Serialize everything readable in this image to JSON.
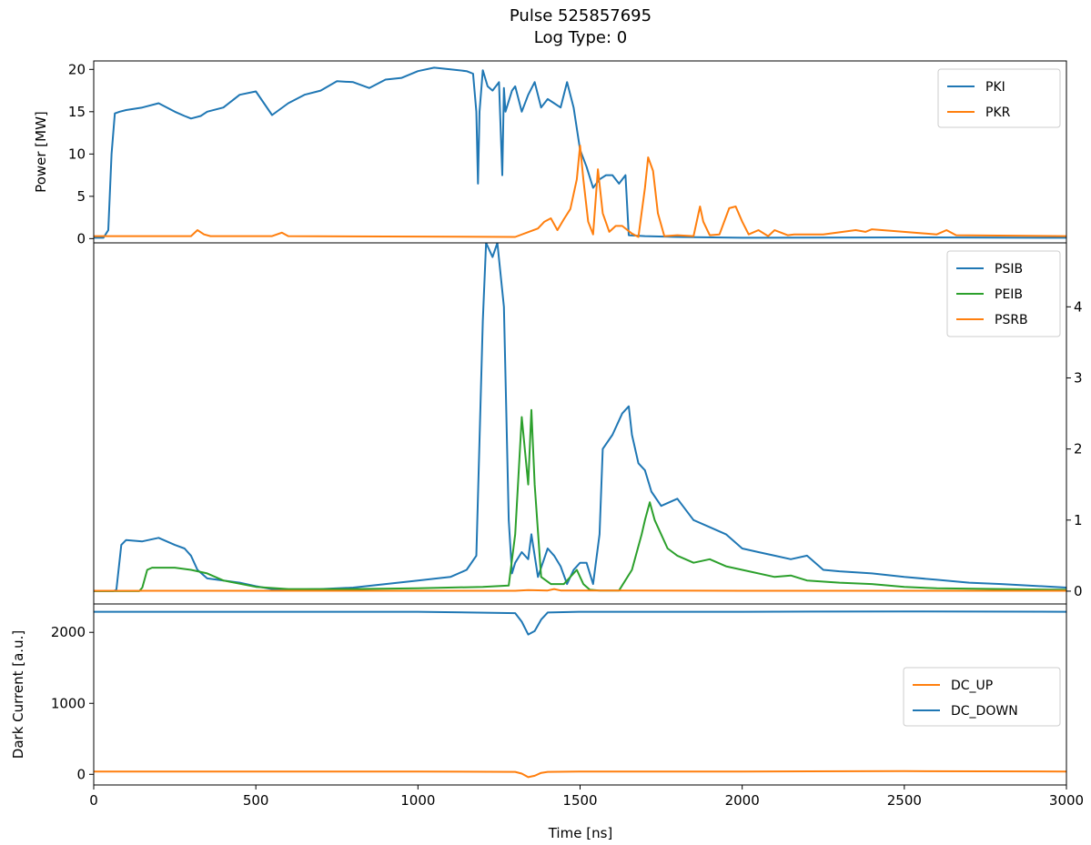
{
  "figure": {
    "title_line1": "Pulse 525857695",
    "title_line2": "Log Type: 0",
    "xlabel": "Time [ns]"
  },
  "chart_data": [
    {
      "type": "line",
      "panel": "top",
      "ylabel": "Power [MW]",
      "xlim": [
        0,
        3000
      ],
      "ylim": [
        -0.5,
        21
      ],
      "xticks": [
        0,
        500,
        1000,
        1500,
        2000,
        2500,
        3000
      ],
      "yticks": [
        0,
        5,
        10,
        15,
        20
      ],
      "legend_position": "upper-right",
      "series": [
        {
          "name": "PKI",
          "color": "#1f77b4",
          "x": [
            0,
            30,
            45,
            55,
            65,
            80,
            100,
            150,
            200,
            250,
            280,
            300,
            330,
            350,
            400,
            450,
            500,
            550,
            600,
            650,
            700,
            750,
            800,
            850,
            900,
            950,
            1000,
            1050,
            1100,
            1150,
            1170,
            1180,
            1185,
            1190,
            1200,
            1215,
            1230,
            1250,
            1260,
            1265,
            1270,
            1290,
            1300,
            1320,
            1340,
            1360,
            1380,
            1400,
            1420,
            1440,
            1460,
            1480,
            1500,
            1520,
            1540,
            1560,
            1580,
            1600,
            1620,
            1640,
            1650,
            1700,
            1800,
            2000,
            2500,
            3000
          ],
          "y": [
            0.1,
            0.1,
            1,
            10,
            14.8,
            15,
            15.2,
            15.5,
            16,
            15,
            14.5,
            14.2,
            14.5,
            15,
            15.5,
            17,
            17.4,
            14.6,
            16,
            17,
            17.5,
            18.6,
            18.5,
            17.8,
            18.8,
            19,
            19.8,
            20.2,
            20,
            19.8,
            19.5,
            15,
            6.5,
            15,
            19.9,
            18,
            17.5,
            18.5,
            7.5,
            17.8,
            15,
            17.5,
            18,
            15,
            17,
            18.5,
            15.5,
            16.5,
            16,
            15.5,
            18.5,
            15.5,
            10.5,
            8.5,
            6,
            7,
            7.5,
            7.5,
            6.5,
            7.5,
            0.4,
            0.3,
            0.2,
            0.1,
            0.15,
            0.1
          ]
        },
        {
          "name": "PKR",
          "color": "#ff7f0e",
          "x": [
            0,
            300,
            320,
            340,
            360,
            550,
            580,
            600,
            1300,
            1370,
            1390,
            1410,
            1430,
            1450,
            1470,
            1490,
            1500,
            1510,
            1525,
            1540,
            1555,
            1570,
            1590,
            1610,
            1630,
            1660,
            1680,
            1700,
            1710,
            1725,
            1740,
            1760,
            1800,
            1850,
            1870,
            1880,
            1900,
            1930,
            1960,
            1980,
            2000,
            2020,
            2050,
            2080,
            2100,
            2140,
            2160,
            2250,
            2350,
            2380,
            2400,
            2600,
            2630,
            2660,
            3000
          ],
          "y": [
            0.3,
            0.3,
            1,
            0.5,
            0.3,
            0.3,
            0.7,
            0.3,
            0.2,
            1.2,
            2,
            2.4,
            1,
            2.3,
            3.5,
            7,
            11,
            7,
            2,
            0.5,
            8.2,
            3,
            0.8,
            1.5,
            1.5,
            0.6,
            0.2,
            6,
            9.6,
            8,
            3,
            0.3,
            0.4,
            0.3,
            3.8,
            2,
            0.4,
            0.5,
            3.6,
            3.8,
            2,
            0.5,
            1,
            0.3,
            1,
            0.4,
            0.5,
            0.5,
            1,
            0.8,
            1.1,
            0.5,
            1,
            0.4,
            0.3
          ]
        }
      ]
    },
    {
      "type": "line",
      "panel": "middle",
      "ylabel": "",
      "xlim": [
        0,
        3000
      ],
      "ylim": [
        -1.8,
        49
      ],
      "yaxis_side": "right",
      "xticks": [
        0,
        500,
        1000,
        1500,
        2000,
        2500,
        3000
      ],
      "yticks": [
        0,
        10,
        20,
        30,
        40
      ],
      "ytick_labels": [
        "0",
        "1",
        "2",
        "3",
        "4"
      ],
      "legend_position": "upper-right",
      "series": [
        {
          "name": "PSIB",
          "color": "#1f77b4",
          "x": [
            0,
            60,
            70,
            85,
            100,
            150,
            200,
            250,
            280,
            300,
            320,
            350,
            400,
            450,
            500,
            550,
            600,
            700,
            800,
            900,
            1000,
            1100,
            1150,
            1180,
            1200,
            1210,
            1230,
            1245,
            1265,
            1280,
            1290,
            1300,
            1320,
            1340,
            1350,
            1370,
            1400,
            1420,
            1440,
            1460,
            1480,
            1500,
            1520,
            1540,
            1560,
            1570,
            1600,
            1630,
            1650,
            1660,
            1680,
            1700,
            1720,
            1750,
            1800,
            1850,
            1900,
            1950,
            2000,
            2050,
            2100,
            2150,
            2200,
            2250,
            2300,
            2400,
            2500,
            2600,
            2700,
            2800,
            3000
          ],
          "y": [
            0,
            0,
            0.2,
            6.5,
            7.2,
            7,
            7.5,
            6.5,
            6,
            5,
            3,
            1.8,
            1.5,
            1.2,
            0.7,
            0.3,
            0.2,
            0.3,
            0.5,
            1,
            1.5,
            2,
            3,
            5,
            38,
            49,
            47,
            49,
            40,
            10,
            2.5,
            4,
            5.5,
            4.5,
            8,
            2,
            6,
            5,
            3.5,
            1,
            3,
            4,
            4,
            1,
            8,
            20,
            22,
            25,
            26,
            22,
            18,
            17,
            14,
            12,
            13,
            10,
            9,
            8,
            6,
            5.5,
            5,
            4.5,
            5,
            3,
            2.8,
            2.5,
            2,
            1.6,
            1.2,
            1,
            0.5
          ]
        },
        {
          "name": "PEIB",
          "color": "#2ca02c",
          "x": [
            0,
            140,
            150,
            165,
            180,
            250,
            300,
            350,
            400,
            500,
            600,
            800,
            1000,
            1200,
            1280,
            1300,
            1320,
            1340,
            1350,
            1360,
            1380,
            1410,
            1450,
            1490,
            1510,
            1530,
            1560,
            1620,
            1660,
            1690,
            1700,
            1715,
            1730,
            1750,
            1770,
            1800,
            1850,
            1900,
            1950,
            2000,
            2100,
            2150,
            2200,
            2300,
            2400,
            2500,
            2600,
            3000
          ],
          "y": [
            0,
            0,
            0.5,
            3,
            3.3,
            3.3,
            3,
            2.5,
            1.5,
            0.6,
            0.3,
            0.3,
            0.4,
            0.6,
            0.8,
            8,
            24.5,
            15,
            25.5,
            15,
            2,
            1,
            1,
            3,
            1,
            0.2,
            0.1,
            0.1,
            3,
            8,
            10,
            12.5,
            10,
            8,
            6,
            5,
            4,
            4.5,
            3.5,
            3,
            2,
            2.2,
            1.5,
            1.2,
            1,
            0.6,
            0.4,
            0.2
          ]
        },
        {
          "name": "PSRB",
          "color": "#ff7f0e",
          "x": [
            0,
            600,
            1300,
            1340,
            1400,
            1420,
            1440,
            1600,
            2000,
            3000
          ],
          "y": [
            0.05,
            0.05,
            0.05,
            0.15,
            0.1,
            0.3,
            0.1,
            0.08,
            0.05,
            0.05
          ]
        }
      ]
    },
    {
      "type": "line",
      "panel": "bottom",
      "ylabel": "Dark Current [a.u.]",
      "xlim": [
        0,
        3000
      ],
      "ylim": [
        -150,
        2400
      ],
      "xticks": [
        0,
        500,
        1000,
        1500,
        2000,
        2500,
        3000
      ],
      "yticks": [
        0,
        1000,
        2000
      ],
      "legend_position": "center-right",
      "series": [
        {
          "name": "DC_UP",
          "color": "#ff7f0e",
          "x": [
            0,
            500,
            1000,
            1300,
            1320,
            1340,
            1360,
            1380,
            1400,
            1500,
            2000,
            2500,
            3000
          ],
          "y": [
            40,
            40,
            40,
            35,
            10,
            -40,
            -20,
            20,
            35,
            40,
            40,
            45,
            40
          ]
        },
        {
          "name": "DC_DOWN",
          "color": "#1f77b4",
          "x": [
            0,
            500,
            1000,
            1300,
            1320,
            1340,
            1360,
            1380,
            1400,
            1500,
            2000,
            2500,
            3000
          ],
          "y": [
            2290,
            2290,
            2290,
            2270,
            2150,
            1970,
            2020,
            2180,
            2280,
            2290,
            2290,
            2295,
            2290
          ]
        }
      ]
    }
  ]
}
